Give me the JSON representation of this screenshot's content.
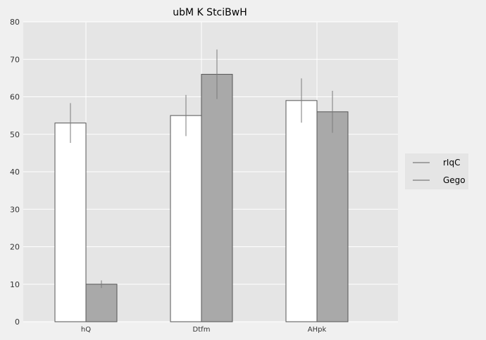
{
  "chart_data": {
    "type": "bar",
    "title": "ubM K StciBwH",
    "xlabel": "",
    "ylabel": "",
    "categories": [
      "hQ",
      "Dtfm",
      "AHpk"
    ],
    "ylim": [
      0,
      80
    ],
    "yticks": [
      0,
      10,
      20,
      30,
      40,
      50,
      60,
      70,
      80
    ],
    "grid": true,
    "legend_position": "right",
    "series": [
      {
        "name": "rIqC",
        "values": [
          53,
          55,
          59
        ],
        "errors": [
          5.3,
          5.5,
          5.9
        ],
        "color": "#ffffff"
      },
      {
        "name": "Gego",
        "values": [
          10,
          66,
          56
        ],
        "errors": [
          1,
          6.6,
          5.6
        ],
        "color": "#a9a9a9"
      }
    ],
    "colors": {
      "plot_background": "#e5e5e5",
      "grid": "#ffffff",
      "error_bar": "#7a7a7a",
      "bar_edge": "#555555"
    }
  }
}
